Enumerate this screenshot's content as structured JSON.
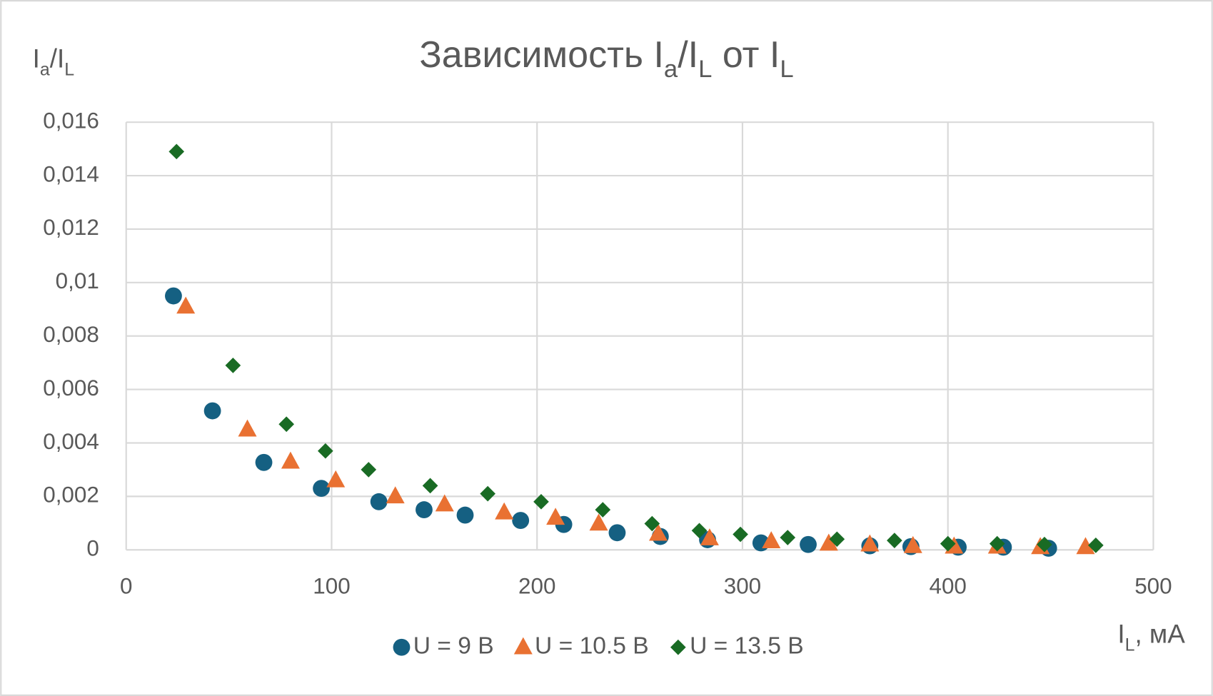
{
  "chart_data": {
    "type": "scatter",
    "title": [
      "Зависимость I",
      "a",
      "/I",
      "L",
      " от I",
      "L"
    ],
    "y_label": [
      "I",
      "a",
      "/I",
      "L"
    ],
    "x_label": [
      "I",
      "L",
      ", мА"
    ],
    "xlim": [
      0,
      500
    ],
    "xticks": [
      0,
      100,
      200,
      300,
      400,
      500
    ],
    "ylim": [
      0,
      0.016
    ],
    "yticks": [
      0,
      {
        "value": 0.002,
        "label": "0,002"
      },
      {
        "value": 0.004,
        "label": "0,004"
      },
      {
        "value": 0.006,
        "label": "0,006"
      },
      {
        "value": 0.008,
        "label": "0,008"
      },
      {
        "value": 0.01,
        "label": "0,01"
      },
      {
        "value": 0.012,
        "label": "0,012"
      },
      {
        "value": 0.014,
        "label": "0,014"
      },
      {
        "value": 0.016,
        "label": "0,016"
      }
    ],
    "grid": true,
    "legend": "bottom",
    "series": [
      {
        "name": "U = 9 В",
        "color": "#156082",
        "marker": "circle",
        "x": [
          23,
          42,
          67,
          95,
          123,
          145,
          165,
          192,
          213,
          239,
          260,
          283,
          309,
          332,
          362,
          382,
          405,
          427,
          449
        ],
        "values": [
          0.0095,
          0.0052,
          0.00327,
          0.0023,
          0.0018,
          0.0015,
          0.0013,
          0.0011,
          0.00095,
          0.00064,
          0.0005,
          0.00038,
          0.00026,
          0.0002,
          0.00015,
          0.00012,
          0.0001,
          0.0001,
          6e-05
        ]
      },
      {
        "name": "U = 10.5 В",
        "color": "#E97132",
        "marker": "triangle",
        "x": [
          29,
          59,
          80,
          102,
          131,
          155,
          184,
          209,
          230,
          259,
          284,
          314,
          342,
          362,
          383,
          403,
          424,
          445,
          467
        ],
        "values": [
          0.0091,
          0.0045,
          0.0033,
          0.0026,
          0.002,
          0.0017,
          0.0014,
          0.0012,
          0.00098,
          0.0006,
          0.00043,
          0.00032,
          0.00023,
          0.0002,
          0.00014,
          0.00012,
          0.00012,
          0.0001,
          0.0001
        ]
      },
      {
        "name": "U = 13.5 В",
        "color": "#196B24",
        "marker": "diamond",
        "x": [
          24.5,
          52,
          78,
          97,
          118,
          148,
          176,
          202,
          232,
          256,
          279,
          299,
          322,
          346,
          374,
          400,
          424,
          447,
          472
        ],
        "values": [
          0.0149,
          0.0069,
          0.0047,
          0.0037,
          0.003,
          0.0024,
          0.0021,
          0.0018,
          0.0015,
          0.00098,
          0.00072,
          0.00058,
          0.00046,
          0.0004,
          0.00035,
          0.00023,
          0.00023,
          0.0002,
          0.00017
        ]
      }
    ]
  }
}
